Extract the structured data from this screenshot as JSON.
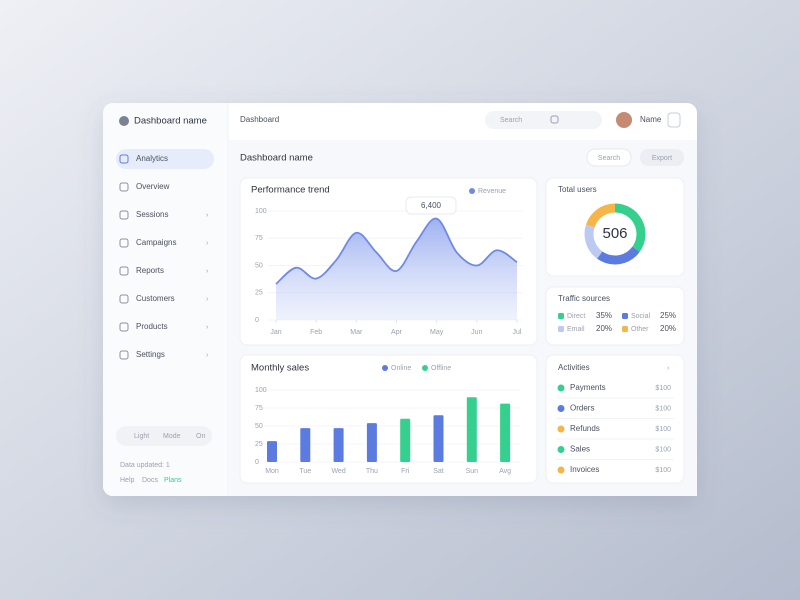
{
  "app": {
    "brand": "Dashboard name",
    "breadcrumb": "Dashboard",
    "search": "Search",
    "user": "Name",
    "title": "Dashboard name",
    "buttons": [
      "Search",
      "Export"
    ]
  },
  "nav": [
    "Analytics",
    "Overview",
    "Sessions",
    "Campaigns",
    "Reports",
    "Customers",
    "Products",
    "Settings"
  ],
  "toggle": [
    "Light",
    "Mode",
    "On"
  ],
  "footer": {
    "note": "Data updated: 1",
    "links": [
      "Help",
      "Docs",
      "Plans"
    ]
  },
  "chart_data": [
    {
      "type": "line",
      "title": "Performance trend",
      "annotation": "6,400",
      "x": [
        0,
        0.5,
        1,
        1.5,
        2,
        2.5,
        3,
        3.5,
        4,
        4.5,
        5,
        5.5,
        6
      ],
      "xlim": [
        0,
        6
      ],
      "xticks": [
        {
          "value": 0,
          "label": "Jan"
        },
        {
          "value": 1,
          "label": "Feb"
        },
        {
          "value": 2,
          "label": "Mar"
        },
        {
          "value": 3,
          "label": "Apr"
        },
        {
          "value": 4,
          "label": "May"
        },
        {
          "value": 5,
          "label": "Jun"
        },
        {
          "value": 6,
          "label": "Jul"
        }
      ],
      "ylim": [
        0,
        100
      ],
      "yticks": [
        0,
        25,
        50,
        75,
        100
      ],
      "series": [
        {
          "name": "Revenue",
          "color": "#6f8ae6",
          "values": [
            33,
            48,
            38,
            55,
            80,
            62,
            45,
            72,
            93,
            62,
            50,
            64,
            53
          ]
        }
      ]
    },
    {
      "type": "pie",
      "title": "Total users",
      "center_label": "506",
      "legend_title": "Traffic sources",
      "categories": [
        "Direct",
        "Social",
        "Email",
        "Other"
      ],
      "values": [
        35,
        25,
        20,
        20
      ],
      "value_labels": [
        "35%",
        "25%",
        "20%",
        "20%"
      ],
      "colors": [
        "#35cf8e",
        "#5b7be0",
        "#bccaf2",
        "#f5b547"
      ]
    },
    {
      "type": "bar",
      "title": "Monthly sales",
      "categories": [
        "Mon",
        "Tue",
        "Wed",
        "Thu",
        "Fri",
        "Sat",
        "Sun",
        "Avg"
      ],
      "ylim": [
        0,
        100
      ],
      "yticks": [
        0,
        25,
        50,
        75,
        100
      ],
      "series": [
        {
          "name": "Online",
          "color": "#5b7be0",
          "values": [
            29,
            47,
            47,
            54,
            null,
            65,
            null,
            null
          ]
        },
        {
          "name": "Offline",
          "color": "#35cf8e",
          "values": [
            null,
            null,
            null,
            null,
            60,
            null,
            90,
            81
          ]
        }
      ]
    }
  ],
  "activities": {
    "title": "Activities",
    "items": [
      {
        "label": "Payments",
        "value": "$100"
      },
      {
        "label": "Orders",
        "value": "$100"
      },
      {
        "label": "Refunds",
        "value": "$100"
      },
      {
        "label": "Sales",
        "value": "$100"
      },
      {
        "label": "Invoices",
        "value": "$100"
      }
    ]
  }
}
